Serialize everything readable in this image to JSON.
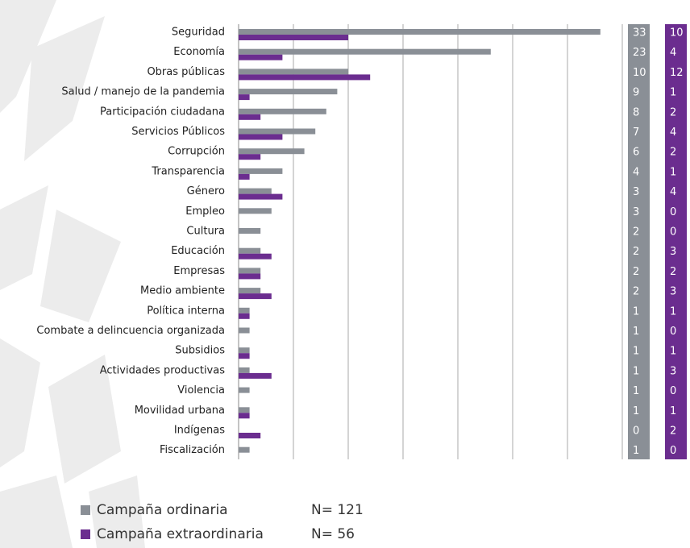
{
  "chart_data": {
    "type": "bar",
    "orientation": "horizontal",
    "categories": [
      "Seguridad",
      "Economía",
      "Obras públicas",
      "Salud / manejo de la pandemia",
      "Participación ciudadana",
      "Servicios Públicos",
      "Corrupción",
      "Transparencia",
      "Género",
      "Empleo",
      "Cultura",
      "Educación",
      "Empresas",
      "Medio ambiente",
      "Política interna",
      "Combate a delincuencia organizada",
      "Subsidios",
      "Actividades productivas",
      "Violencia",
      "Movilidad urbana",
      "Indígenas",
      "Fiscalización"
    ],
    "series": [
      {
        "name": "Campaña ordinaria",
        "note": "N= 121",
        "color": "#8a8f96",
        "values": [
          33,
          23,
          10,
          9,
          8,
          7,
          6,
          4,
          3,
          3,
          2,
          2,
          2,
          2,
          1,
          1,
          1,
          1,
          1,
          1,
          0,
          1
        ]
      },
      {
        "name": "Campaña extraordinaria",
        "note": "N= 56",
        "color": "#6b2d8f",
        "values": [
          10,
          4,
          12,
          1,
          2,
          4,
          2,
          1,
          4,
          0,
          0,
          3,
          2,
          3,
          1,
          0,
          1,
          3,
          0,
          1,
          2,
          0
        ]
      }
    ],
    "xlim": [
      0,
      35
    ],
    "xticks": [
      0,
      5,
      10,
      15,
      20,
      25,
      30,
      35
    ],
    "grid": true
  }
}
